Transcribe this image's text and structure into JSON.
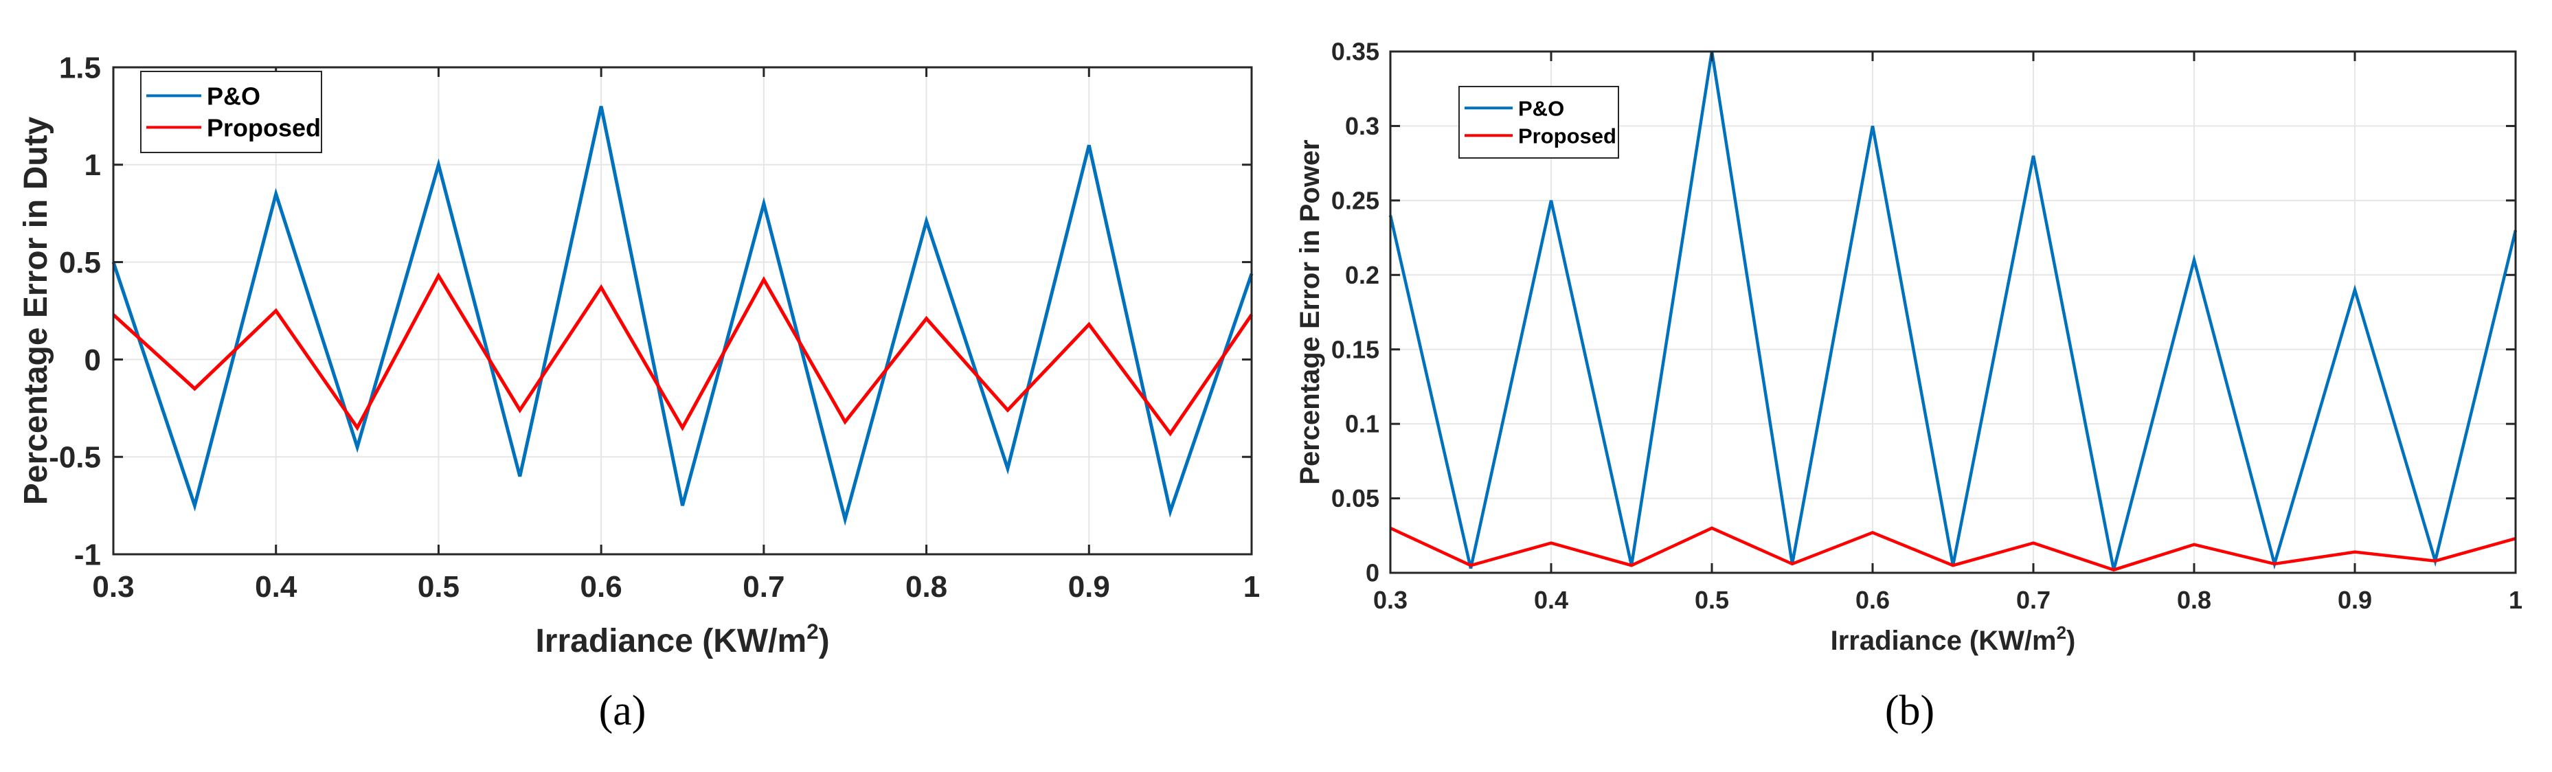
{
  "chart_data": [
    {
      "type": "line",
      "panel_label": "a",
      "title": "",
      "xlabel": "Irradiance (KW/m",
      "xlabel_superscript": "2",
      "xlabel_suffix": ")",
      "ylabel": "Percentage Error in Duty",
      "xlim": [
        0.3,
        1
      ],
      "ylim": [
        -1,
        1.5
      ],
      "x_ticks": [
        0.3,
        0.4,
        0.5,
        0.6,
        0.7,
        0.8,
        0.9,
        1
      ],
      "x_tick_labels": [
        "0.3",
        "0.4",
        "0.5",
        "0.6",
        "0.7",
        "0.8",
        "0.9",
        "1"
      ],
      "y_ticks": [
        -1,
        -0.5,
        0,
        0.5,
        1,
        1.5
      ],
      "y_tick_labels": [
        "-1",
        "-0.5",
        "0",
        "0.5",
        "1",
        "1.5"
      ],
      "grid": true,
      "legend_position": "top-left",
      "x": [
        0.3,
        0.35,
        0.4,
        0.45,
        0.5,
        0.55,
        0.6,
        0.65,
        0.7,
        0.75,
        0.8,
        0.85,
        0.9,
        0.95,
        1.0
      ],
      "series": [
        {
          "name": "P&O",
          "color": "#0072bd",
          "values": [
            0.5,
            -0.75,
            0.85,
            -0.45,
            1.0,
            -0.6,
            1.3,
            -0.75,
            0.8,
            -0.82,
            0.71,
            -0.56,
            1.1,
            -0.78,
            0.44
          ]
        },
        {
          "name": "Proposed",
          "color": "#ff0000",
          "values": [
            0.23,
            -0.15,
            0.25,
            -0.35,
            0.43,
            -0.26,
            0.37,
            -0.35,
            0.41,
            -0.32,
            0.21,
            -0.26,
            0.18,
            -0.38,
            0.23
          ]
        }
      ]
    },
    {
      "type": "line",
      "panel_label": "b",
      "title": "",
      "xlabel": "Irradiance (KW/m",
      "xlabel_superscript": "2",
      "xlabel_suffix": ")",
      "ylabel": "Percentage Error in Power",
      "xlim": [
        0.3,
        1
      ],
      "ylim": [
        0,
        0.35
      ],
      "x_ticks": [
        0.3,
        0.4,
        0.5,
        0.6,
        0.7,
        0.8,
        0.9,
        1
      ],
      "x_tick_labels": [
        "0.3",
        "0.4",
        "0.5",
        "0.6",
        "0.7",
        "0.8",
        "0.9",
        "1"
      ],
      "y_ticks": [
        0,
        0.05,
        0.1,
        0.15,
        0.2,
        0.25,
        0.3,
        0.35
      ],
      "y_tick_labels": [
        "0",
        "0.05",
        "0.1",
        "0.15",
        "0.2",
        "0.25",
        "0.3",
        "0.35"
      ],
      "grid": true,
      "legend_position": "top-left",
      "x": [
        0.3,
        0.35,
        0.4,
        0.45,
        0.5,
        0.55,
        0.6,
        0.65,
        0.7,
        0.75,
        0.8,
        0.85,
        0.9,
        0.95,
        1.0
      ],
      "series": [
        {
          "name": "P&O",
          "color": "#0072bd",
          "values": [
            0.24,
            0.003,
            0.25,
            0.005,
            0.35,
            0.006,
            0.3,
            0.005,
            0.28,
            0.002,
            0.21,
            0.006,
            0.19,
            0.008,
            0.23
          ]
        },
        {
          "name": "Proposed",
          "color": "#ff0000",
          "values": [
            0.03,
            0.005,
            0.02,
            0.005,
            0.03,
            0.006,
            0.027,
            0.005,
            0.02,
            0.002,
            0.019,
            0.006,
            0.014,
            0.008,
            0.023
          ]
        }
      ]
    }
  ],
  "captions": {
    "a": "(a)",
    "b": "(b)"
  }
}
